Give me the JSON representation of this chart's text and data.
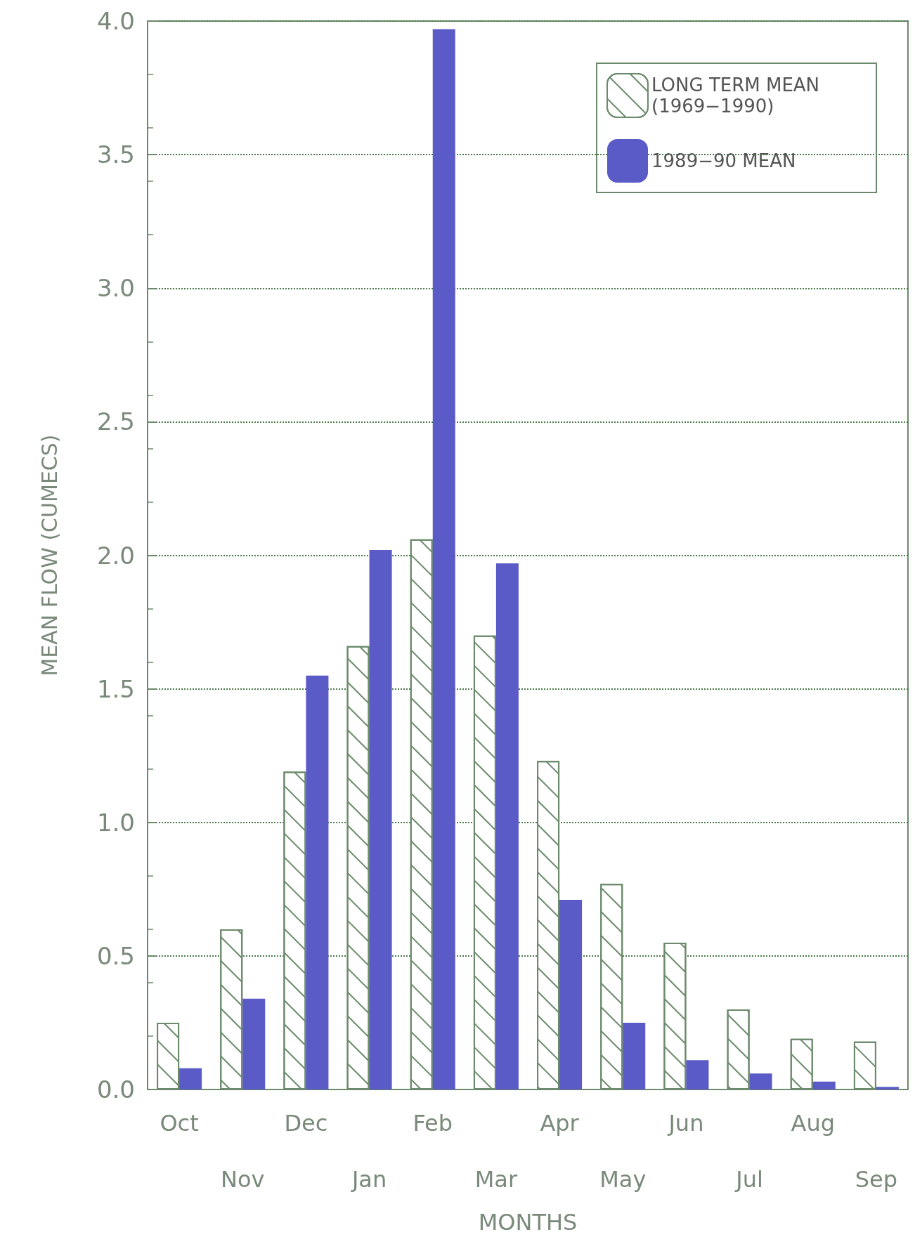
{
  "chart_data": {
    "type": "bar",
    "xlabel": "MONTHS",
    "ylabel": "MEAN FLOW (CUMECS)",
    "categories": [
      "Oct",
      "Nov",
      "Dec",
      "Jan",
      "Feb",
      "Mar",
      "Apr",
      "May",
      "Jun",
      "Jul",
      "Aug",
      "Sep"
    ],
    "series": [
      {
        "name": "LONG TERM MEAN (1969−1990)",
        "color": "#ffffff",
        "values": [
          0.25,
          0.6,
          1.19,
          1.66,
          2.06,
          1.7,
          1.23,
          0.77,
          0.55,
          0.3,
          0.19,
          0.18
        ]
      },
      {
        "name": "1989−90 MEAN",
        "color": "#5b5bc8",
        "values": [
          0.08,
          0.34,
          1.55,
          2.02,
          3.97,
          1.97,
          0.71,
          0.25,
          0.11,
          0.06,
          0.03,
          0.01
        ]
      }
    ],
    "ylim": [
      0,
      4
    ],
    "yticks": [
      {
        "value": 0,
        "label": "0.0"
      },
      0.5,
      {
        "value": 1,
        "label": "1.0"
      },
      1.5,
      {
        "value": 2,
        "label": "2.0"
      },
      2.5,
      {
        "value": 3,
        "label": "3.0"
      },
      3.5,
      {
        "value": 4,
        "label": "4.0"
      }
    ],
    "grid": "y",
    "legend": "top right"
  }
}
